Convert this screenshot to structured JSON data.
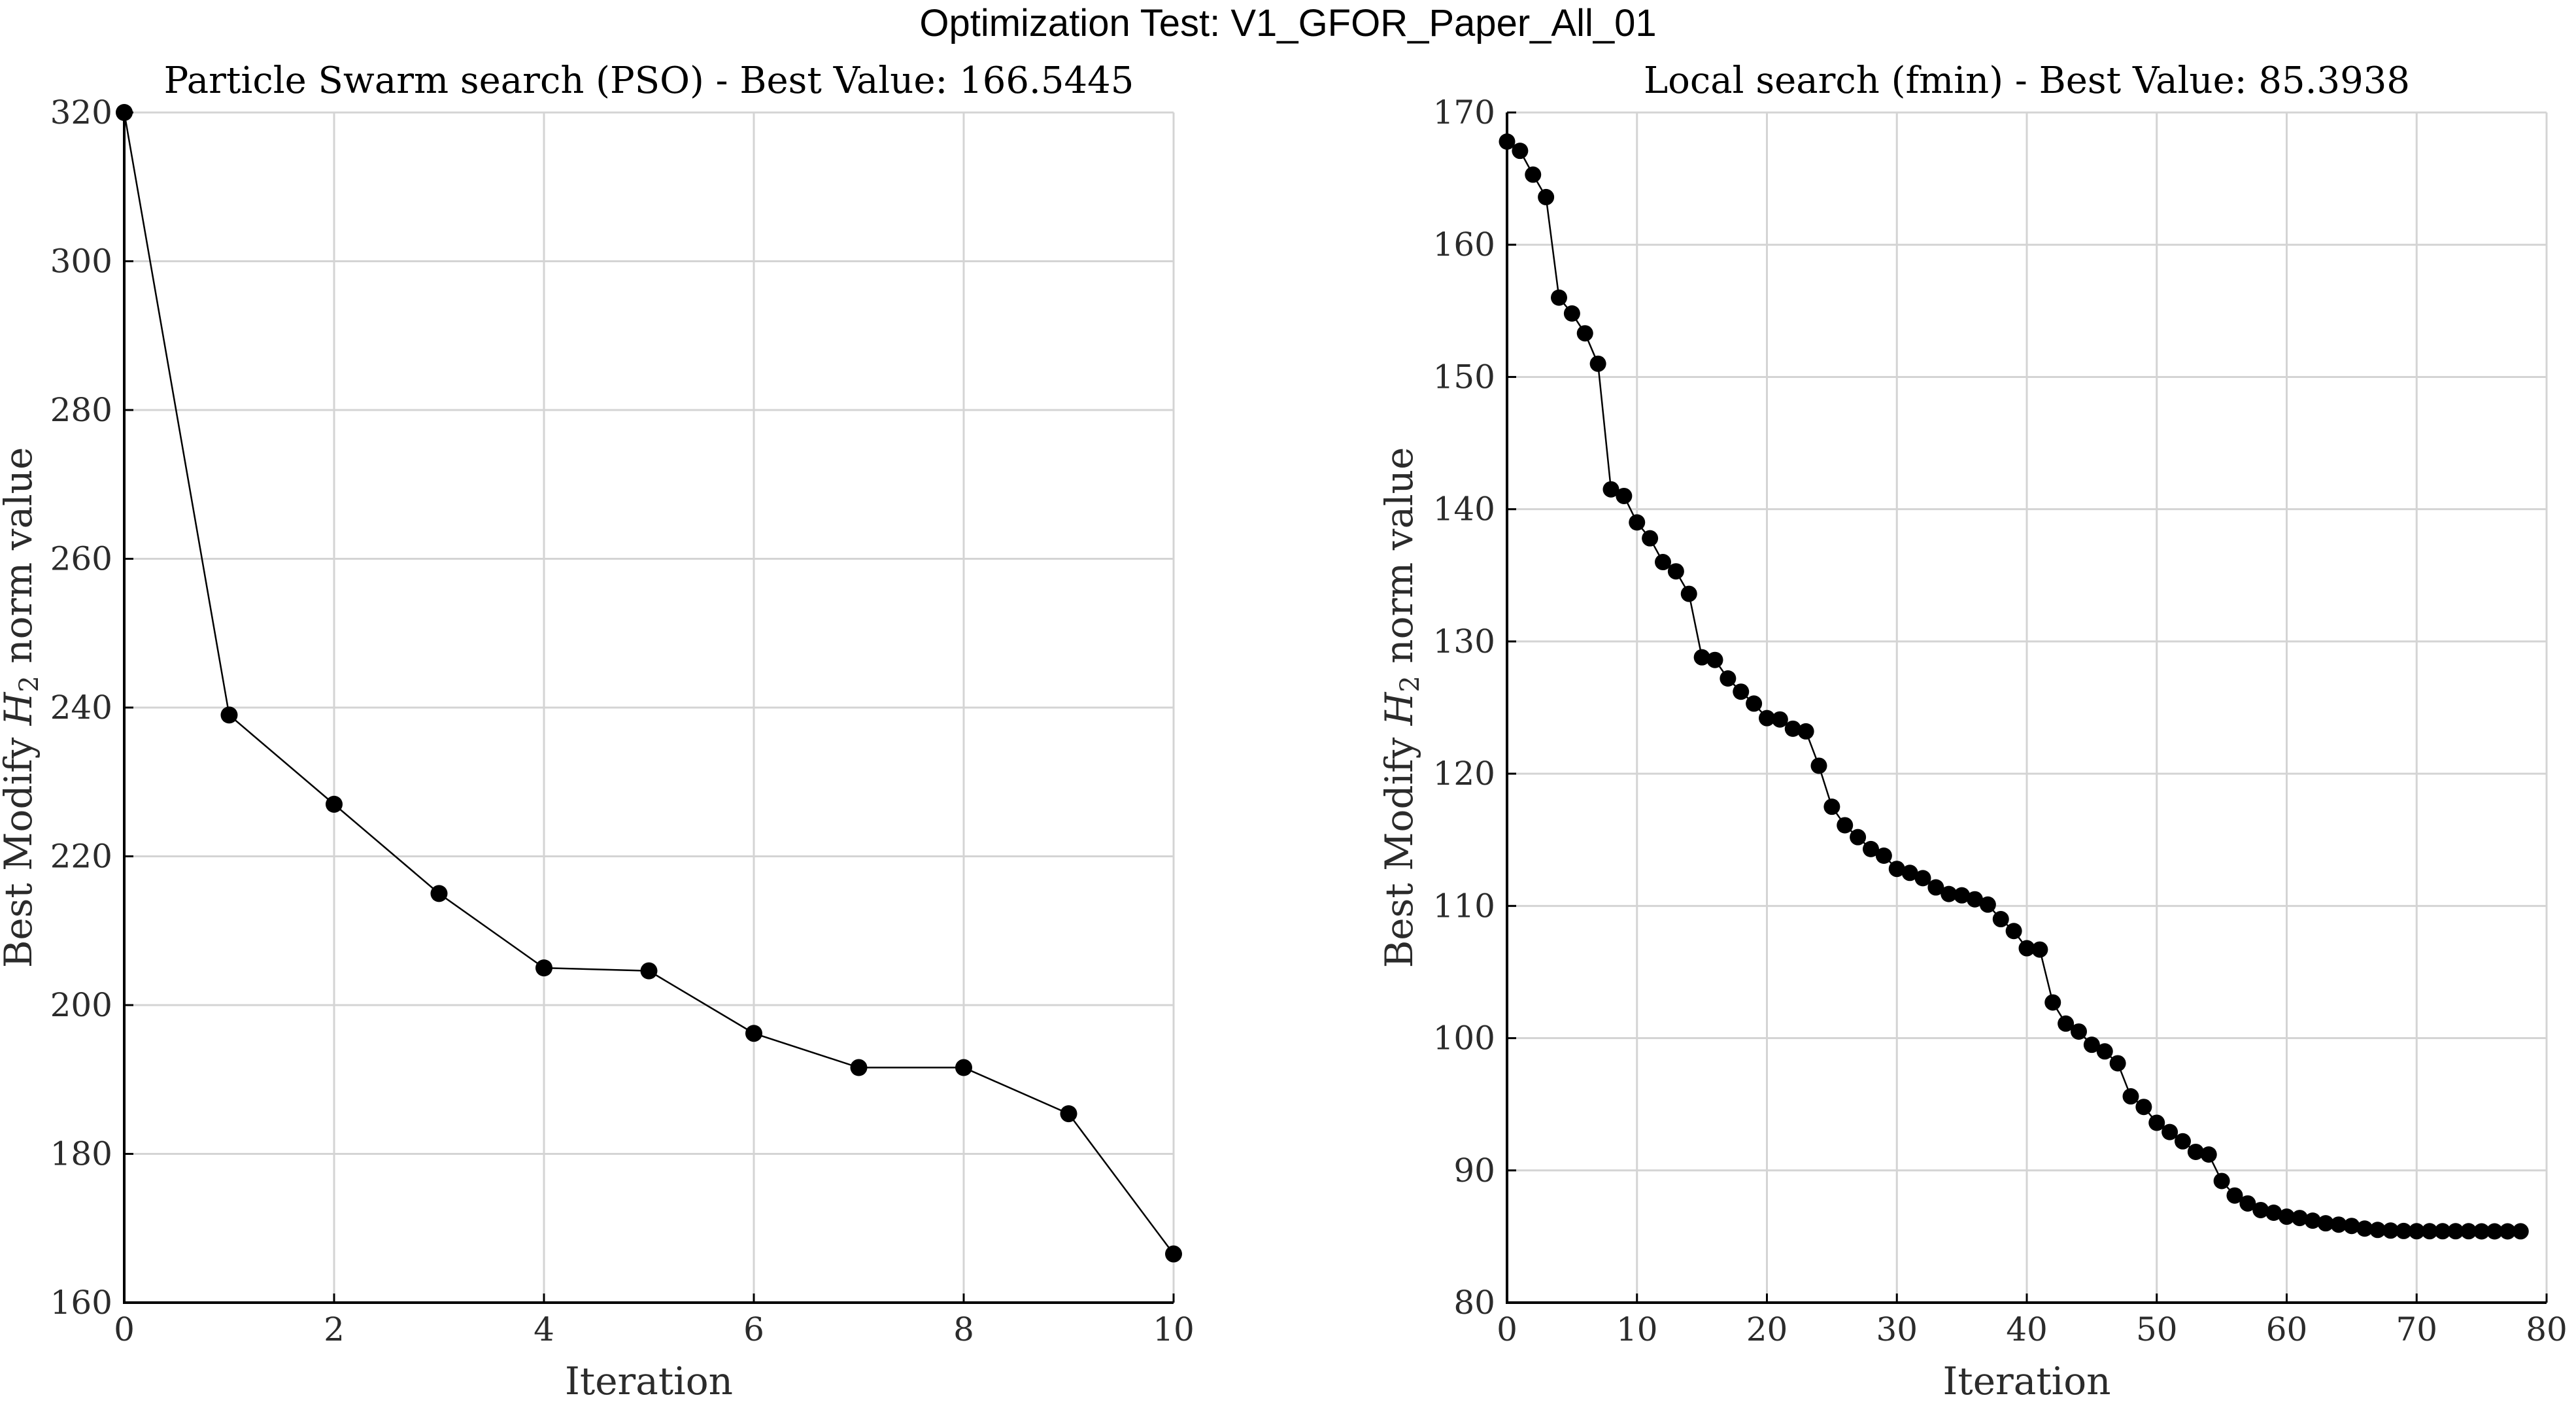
{
  "figure_title": "Optimization Test: V1_GFOR_Paper_All_01",
  "chart_data": [
    {
      "type": "line",
      "title": "Particle Swarm search (PSO) - Best Value: 166.5445",
      "xlabel": "Iteration",
      "ylabel": "Best Modify H2 norm value",
      "xlim": [
        0,
        10
      ],
      "ylim": [
        160,
        320
      ],
      "xticks": [
        0,
        2,
        4,
        6,
        8,
        10
      ],
      "yticks": [
        160,
        180,
        200,
        220,
        240,
        260,
        280,
        300,
        320
      ],
      "grid": true,
      "marker": "filled-circle",
      "x": [
        0,
        1,
        2,
        3,
        4,
        5,
        6,
        7,
        8,
        9,
        10
      ],
      "values": [
        320.0,
        239.0,
        227.0,
        215.0,
        205.0,
        204.6,
        196.2,
        191.6,
        191.6,
        185.4,
        166.5445
      ]
    },
    {
      "type": "line",
      "title": "Local search (fmin) - Best Value: 85.3938",
      "xlabel": "Iteration",
      "ylabel": "Best Modify H2 norm value",
      "xlim": [
        0,
        80
      ],
      "ylim": [
        80,
        170
      ],
      "xticks": [
        0,
        10,
        20,
        30,
        40,
        50,
        60,
        70,
        80
      ],
      "yticks": [
        80,
        90,
        100,
        110,
        120,
        130,
        140,
        150,
        160,
        170
      ],
      "grid": true,
      "marker": "filled-circle",
      "x": [
        0,
        1,
        2,
        3,
        4,
        5,
        6,
        7,
        8,
        9,
        10,
        11,
        12,
        13,
        14,
        15,
        16,
        17,
        18,
        19,
        20,
        21,
        22,
        23,
        24,
        25,
        26,
        27,
        28,
        29,
        30,
        31,
        32,
        33,
        34,
        35,
        36,
        37,
        38,
        39,
        40,
        41,
        42,
        43,
        44,
        45,
        46,
        47,
        48,
        49,
        50,
        51,
        52,
        53,
        54,
        55,
        56,
        57,
        58,
        59,
        60,
        61,
        62,
        63,
        64,
        65,
        66,
        67,
        68,
        69,
        70,
        71,
        72,
        73,
        74,
        75,
        76,
        77,
        78
      ],
      "values": [
        167.8,
        167.1,
        165.3,
        163.6,
        156.0,
        154.8,
        153.3,
        151.0,
        141.5,
        141.0,
        139.0,
        137.8,
        136.0,
        135.3,
        133.6,
        128.8,
        128.6,
        127.2,
        126.2,
        125.3,
        124.2,
        124.1,
        123.4,
        123.2,
        120.6,
        117.5,
        116.1,
        115.2,
        114.3,
        113.8,
        112.8,
        112.5,
        112.1,
        111.4,
        110.9,
        110.8,
        110.5,
        110.1,
        109.0,
        108.1,
        106.8,
        106.7,
        102.7,
        101.1,
        100.5,
        99.5,
        99.0,
        98.1,
        95.6,
        94.8,
        93.6,
        92.9,
        92.2,
        91.4,
        91.2,
        89.2,
        88.1,
        87.5,
        87.0,
        86.8,
        86.5,
        86.4,
        86.2,
        86.0,
        85.9,
        85.8,
        85.6,
        85.5,
        85.45,
        85.42,
        85.4,
        85.4,
        85.4,
        85.4,
        85.4,
        85.39,
        85.39,
        85.39,
        85.3938
      ]
    }
  ]
}
